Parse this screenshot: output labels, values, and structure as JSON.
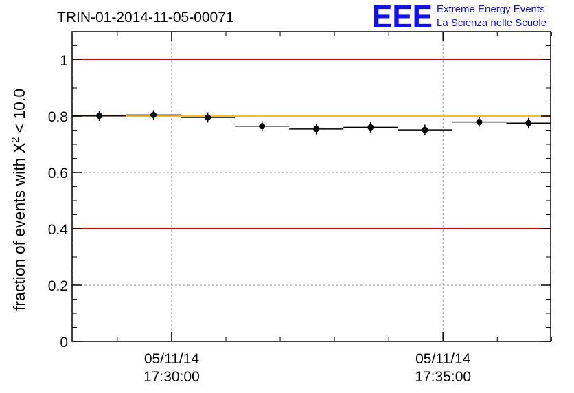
{
  "header": {
    "run_title": "TRIN-01-2014-11-05-00071",
    "logo_mark": "EEE",
    "logo_line1": "Extreme Energy Events",
    "logo_line2": "La Scienza nelle Scuole"
  },
  "chart_data": {
    "type": "scatter",
    "ylabel": "fraction of events with X",
    "ylabel_superscript": "2",
    "ylabel_suffix": "< 10.0",
    "xlabel": "",
    "ylim": [
      0,
      1.1
    ],
    "y_ticks": [
      0,
      0.2,
      0.4,
      0.6,
      0.8,
      1
    ],
    "y_tick_labels": [
      "0",
      "0.2",
      "0.4",
      "0.6",
      "0.8",
      "1"
    ],
    "xlim": [
      "17:28:10",
      "17:36:59"
    ],
    "x_major_ticks": [
      "17:30:00",
      "17:35:00"
    ],
    "x_tick_labels": [
      {
        "date": "05/11/14",
        "time": "17:30:00"
      },
      {
        "date": "05/11/14",
        "time": "17:35:00"
      }
    ],
    "x_minor_ticks": [
      "17:29:00",
      "17:31:00",
      "17:32:00",
      "17:33:00",
      "17:34:00",
      "17:36:00",
      "17:37:00"
    ],
    "grid": true,
    "reference_lines": [
      {
        "y": 1.0,
        "color": "#e00000"
      },
      {
        "y": 0.8,
        "color": "#ffc000"
      },
      {
        "y": 0.4,
        "color": "#e00000"
      }
    ],
    "points": [
      {
        "x_start": "17:28:10",
        "x_end": "17:29:10",
        "y": 0.801,
        "err": 0.018
      },
      {
        "x_start": "17:29:10",
        "x_end": "17:30:10",
        "y": 0.804,
        "err": 0.017
      },
      {
        "x_start": "17:30:10",
        "x_end": "17:31:10",
        "y": 0.795,
        "err": 0.018
      },
      {
        "x_start": "17:31:10",
        "x_end": "17:32:10",
        "y": 0.764,
        "err": 0.019
      },
      {
        "x_start": "17:32:10",
        "x_end": "17:33:10",
        "y": 0.754,
        "err": 0.019
      },
      {
        "x_start": "17:33:10",
        "x_end": "17:34:10",
        "y": 0.76,
        "err": 0.018
      },
      {
        "x_start": "17:34:10",
        "x_end": "17:35:10",
        "y": 0.751,
        "err": 0.019
      },
      {
        "x_start": "17:35:10",
        "x_end": "17:36:10",
        "y": 0.779,
        "err": 0.017
      },
      {
        "x_start": "17:36:10",
        "x_end": "17:36:59",
        "y": 0.775,
        "err": 0.018
      }
    ],
    "colors": {
      "points": "#000000",
      "grid": "#999999"
    }
  }
}
